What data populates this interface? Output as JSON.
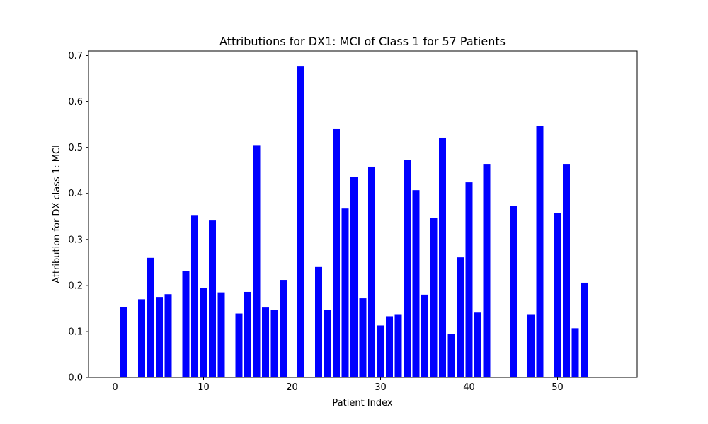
{
  "chart_data": {
    "type": "bar",
    "title": "Attributions for DX1: MCI of Class 1 for 57 Patients",
    "xlabel": "Patient Index",
    "ylabel": "Attribution for DX class 1: MCI",
    "xlim": [
      -3,
      59
    ],
    "ylim": [
      0,
      0.71
    ],
    "xticks": [
      0,
      10,
      20,
      30,
      40,
      50
    ],
    "yticks": [
      0.0,
      0.1,
      0.2,
      0.3,
      0.4,
      0.5,
      0.6,
      0.7
    ],
    "bar_width": 0.8,
    "bar_color": "#0000ff",
    "grid": false,
    "x": [
      1,
      3,
      4,
      5,
      6,
      8,
      9,
      10,
      11,
      12,
      14,
      15,
      16,
      17,
      18,
      19,
      21,
      23,
      24,
      25,
      26,
      27,
      28,
      29,
      30,
      31,
      32,
      33,
      34,
      35,
      36,
      37,
      38,
      39,
      40,
      41,
      42,
      45,
      47,
      48,
      50,
      51,
      52,
      53
    ],
    "values": [
      0.153,
      0.17,
      0.26,
      0.175,
      0.181,
      0.232,
      0.353,
      0.194,
      0.341,
      0.185,
      0.139,
      0.186,
      0.505,
      0.152,
      0.146,
      0.212,
      0.676,
      0.24,
      0.147,
      0.541,
      0.367,
      0.435,
      0.172,
      0.458,
      0.113,
      0.133,
      0.136,
      0.473,
      0.407,
      0.18,
      0.347,
      0.521,
      0.094,
      0.261,
      0.424,
      0.141,
      0.464,
      0.373,
      0.136,
      0.546,
      0.358,
      0.464,
      0.107,
      0.206
    ]
  }
}
